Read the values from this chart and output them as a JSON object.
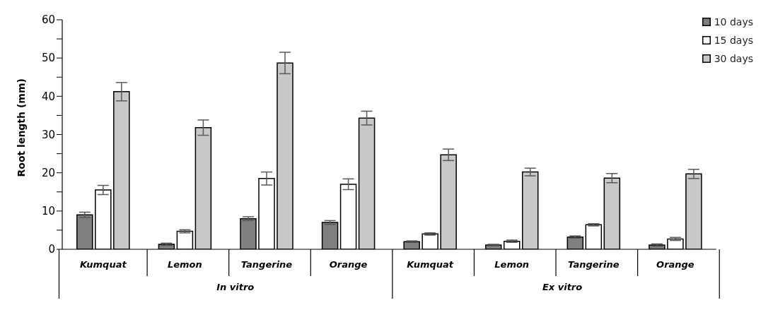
{
  "chart_data": {
    "type": "bar",
    "ylabel": "Root length (mm)",
    "categories": [
      "Kumquat",
      "Lemon",
      "Tangerine",
      "Orange",
      "Kumquat",
      "Lemon",
      "Tangerine",
      "Orange"
    ],
    "annotations": [
      "In vitro",
      "Ex vitro"
    ],
    "series": [
      {
        "name": "10 days",
        "color": "#808080",
        "values": [
          9,
          1.3,
          8,
          7,
          2,
          1.1,
          3.2,
          1.1
        ],
        "errors": [
          0.7,
          0.3,
          0.5,
          0.5,
          0.2,
          0.2,
          0.3,
          0.3
        ]
      },
      {
        "name": "15 days",
        "color": "#ffffff",
        "values": [
          15.5,
          4.7,
          18.5,
          17,
          4,
          2.1,
          6.4,
          2.7
        ],
        "errors": [
          1.2,
          0.4,
          1.7,
          1.4,
          0.3,
          0.3,
          0.3,
          0.4
        ]
      },
      {
        "name": "30 days",
        "color": "#c8c8c8",
        "values": [
          41.2,
          31.8,
          48.7,
          34.3,
          24.7,
          20.2,
          18.6,
          19.7
        ],
        "errors": [
          2.4,
          2,
          2.8,
          1.8,
          1.5,
          1,
          1.2,
          1.2
        ]
      }
    ],
    "ylim": [
      0,
      60
    ],
    "yticks": [
      0,
      {
        "value": 5,
        "label": null
      },
      10,
      {
        "value": 15,
        "label": null
      },
      20,
      {
        "value": 25,
        "label": null
      },
      30,
      {
        "value": 35,
        "label": null
      },
      40,
      {
        "value": 45,
        "label": null
      },
      50,
      {
        "value": 55,
        "label": null
      },
      60
    ],
    "grid": false,
    "legend": "top right"
  }
}
